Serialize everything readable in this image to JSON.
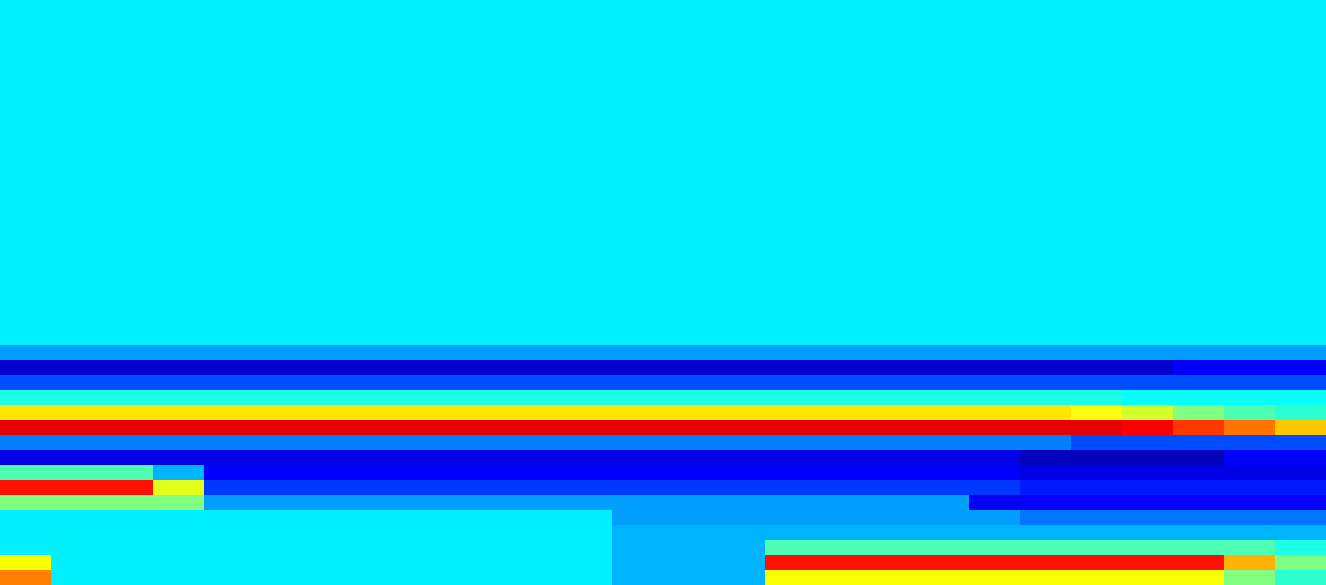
{
  "chart_data": {
    "type": "heatmap",
    "tick_labels": false,
    "vlim": [
      0,
      100
    ],
    "cells": [
      [
        36,
        36,
        36,
        36,
        36,
        36,
        36,
        36,
        36,
        36,
        36,
        36,
        36,
        36,
        36,
        36,
        36,
        36,
        36,
        36,
        36,
        36,
        36,
        36,
        36,
        36
      ],
      [
        36,
        36,
        36,
        36,
        36,
        36,
        36,
        36,
        36,
        36,
        36,
        36,
        36,
        36,
        36,
        36,
        36,
        36,
        36,
        36,
        36,
        36,
        36,
        36,
        36,
        36
      ],
      [
        36,
        36,
        36,
        36,
        36,
        36,
        36,
        36,
        36,
        36,
        36,
        36,
        36,
        36,
        36,
        36,
        36,
        36,
        36,
        36,
        36,
        36,
        36,
        36,
        36,
        36
      ],
      [
        36,
        36,
        36,
        36,
        36,
        36,
        36,
        36,
        36,
        36,
        36,
        36,
        36,
        36,
        36,
        36,
        36,
        36,
        36,
        36,
        36,
        36,
        36,
        36,
        36,
        36
      ],
      [
        36,
        36,
        36,
        36,
        36,
        36,
        36,
        36,
        36,
        36,
        36,
        36,
        36,
        36,
        36,
        36,
        36,
        36,
        36,
        36,
        36,
        36,
        36,
        36,
        36,
        36
      ],
      [
        36,
        36,
        36,
        36,
        36,
        36,
        36,
        36,
        36,
        36,
        36,
        36,
        36,
        36,
        36,
        36,
        36,
        36,
        36,
        36,
        36,
        36,
        36,
        36,
        36,
        36
      ],
      [
        36,
        36,
        36,
        36,
        36,
        36,
        36,
        36,
        36,
        36,
        36,
        36,
        36,
        36,
        36,
        36,
        36,
        36,
        36,
        36,
        36,
        36,
        36,
        36,
        36,
        36
      ],
      [
        36,
        36,
        36,
        36,
        36,
        36,
        36,
        36,
        36,
        36,
        36,
        36,
        36,
        36,
        36,
        36,
        36,
        36,
        36,
        36,
        36,
        36,
        36,
        36,
        36,
        36
      ],
      [
        36,
        36,
        36,
        36,
        36,
        36,
        36,
        36,
        36,
        36,
        36,
        36,
        36,
        36,
        36,
        36,
        36,
        36,
        36,
        36,
        36,
        36,
        36,
        36,
        36,
        36
      ],
      [
        36,
        36,
        36,
        36,
        36,
        36,
        36,
        36,
        36,
        36,
        36,
        36,
        36,
        36,
        36,
        36,
        36,
        36,
        36,
        36,
        36,
        36,
        36,
        36,
        36,
        36
      ],
      [
        36,
        36,
        36,
        36,
        36,
        36,
        36,
        36,
        36,
        36,
        36,
        36,
        36,
        36,
        36,
        36,
        36,
        36,
        36,
        36,
        36,
        36,
        36,
        36,
        36,
        36
      ],
      [
        36,
        36,
        36,
        36,
        36,
        36,
        36,
        36,
        36,
        36,
        36,
        36,
        36,
        36,
        36,
        36,
        36,
        36,
        36,
        36,
        36,
        36,
        36,
        36,
        36,
        36
      ],
      [
        36,
        36,
        36,
        36,
        36,
        36,
        36,
        36,
        36,
        36,
        36,
        36,
        36,
        36,
        36,
        36,
        36,
        36,
        36,
        36,
        36,
        36,
        36,
        36,
        36,
        36
      ],
      [
        36,
        36,
        36,
        36,
        36,
        36,
        36,
        36,
        36,
        36,
        36,
        36,
        36,
        36,
        36,
        36,
        36,
        36,
        36,
        36,
        36,
        36,
        36,
        36,
        36,
        36
      ],
      [
        36,
        36,
        36,
        36,
        36,
        36,
        36,
        36,
        36,
        36,
        36,
        36,
        36,
        36,
        36,
        36,
        36,
        36,
        36,
        36,
        36,
        36,
        36,
        36,
        36,
        36
      ],
      [
        36,
        36,
        36,
        36,
        36,
        36,
        36,
        36,
        36,
        36,
        36,
        36,
        36,
        36,
        36,
        36,
        36,
        36,
        36,
        36,
        36,
        36,
        36,
        36,
        36,
        36
      ],
      [
        36,
        36,
        36,
        36,
        36,
        36,
        36,
        36,
        36,
        36,
        36,
        36,
        36,
        36,
        36,
        36,
        36,
        36,
        36,
        36,
        36,
        36,
        36,
        36,
        36,
        36
      ],
      [
        36,
        36,
        36,
        36,
        36,
        36,
        36,
        36,
        36,
        36,
        36,
        36,
        36,
        36,
        36,
        36,
        36,
        36,
        36,
        36,
        36,
        36,
        36,
        36,
        36,
        36
      ],
      [
        36,
        36,
        36,
        36,
        36,
        36,
        36,
        36,
        36,
        36,
        36,
        36,
        36,
        36,
        36,
        36,
        36,
        36,
        36,
        36,
        36,
        36,
        36,
        36,
        36,
        36
      ],
      [
        36,
        36,
        36,
        36,
        36,
        36,
        36,
        36,
        36,
        36,
        36,
        36,
        36,
        36,
        36,
        36,
        36,
        36,
        36,
        36,
        36,
        36,
        36,
        36,
        36,
        36
      ],
      [
        36,
        36,
        36,
        36,
        36,
        36,
        36,
        36,
        36,
        36,
        36,
        36,
        36,
        36,
        36,
        36,
        36,
        36,
        36,
        36,
        36,
        36,
        36,
        36,
        36,
        36
      ],
      [
        36,
        36,
        36,
        36,
        36,
        36,
        36,
        36,
        36,
        36,
        36,
        36,
        36,
        36,
        36,
        36,
        36,
        36,
        36,
        36,
        36,
        36,
        36,
        36,
        36,
        36
      ],
      [
        36,
        36,
        36,
        36,
        36,
        36,
        36,
        36,
        36,
        36,
        36,
        36,
        36,
        36,
        36,
        36,
        36,
        36,
        36,
        36,
        36,
        36,
        36,
        36,
        36,
        36
      ],
      [
        28,
        28,
        28,
        28,
        28,
        28,
        28,
        28,
        28,
        28,
        28,
        28,
        28,
        28,
        28,
        28,
        28,
        28,
        28,
        28,
        28,
        28,
        28,
        28,
        28,
        28
      ],
      [
        8,
        8,
        8,
        8,
        8,
        8,
        8,
        8,
        8,
        8,
        8,
        8,
        8,
        8,
        8,
        8,
        8,
        8,
        8,
        8,
        8,
        8,
        8,
        12,
        12,
        12
      ],
      [
        20,
        20,
        20,
        20,
        20,
        20,
        20,
        20,
        20,
        20,
        20,
        20,
        20,
        20,
        20,
        20,
        20,
        20,
        20,
        20,
        20,
        20,
        20,
        20,
        20,
        20
      ],
      [
        40,
        40,
        40,
        40,
        40,
        40,
        40,
        40,
        40,
        40,
        40,
        40,
        40,
        40,
        40,
        40,
        40,
        40,
        40,
        40,
        40,
        40,
        38,
        38,
        38,
        38
      ],
      [
        65,
        65,
        65,
        65,
        65,
        65,
        65,
        65,
        65,
        65,
        65,
        65,
        65,
        65,
        65,
        65,
        65,
        65,
        65,
        65,
        65,
        62,
        58,
        50,
        45,
        42
      ],
      [
        90,
        90,
        90,
        90,
        90,
        90,
        90,
        90,
        90,
        90,
        90,
        90,
        90,
        90,
        90,
        90,
        90,
        90,
        90,
        90,
        90,
        90,
        88,
        82,
        76,
        68
      ],
      [
        25,
        25,
        25,
        25,
        25,
        25,
        25,
        25,
        25,
        25,
        25,
        25,
        25,
        25,
        25,
        25,
        25,
        25,
        25,
        25,
        25,
        20,
        20,
        20,
        20,
        20
      ],
      [
        10,
        10,
        10,
        10,
        10,
        10,
        10,
        10,
        10,
        10,
        10,
        10,
        10,
        10,
        10,
        10,
        10,
        10,
        10,
        10,
        6,
        6,
        6,
        6,
        12,
        12
      ],
      [
        45,
        45,
        45,
        30,
        12,
        12,
        12,
        12,
        12,
        12,
        12,
        12,
        12,
        12,
        12,
        12,
        12,
        12,
        12,
        12,
        10,
        10,
        10,
        10,
        10,
        10
      ],
      [
        86,
        86,
        86,
        60,
        18,
        18,
        18,
        18,
        18,
        18,
        18,
        18,
        18,
        18,
        18,
        18,
        18,
        18,
        18,
        18,
        15,
        15,
        15,
        15,
        15,
        15
      ],
      [
        50,
        50,
        50,
        50,
        28,
        28,
        28,
        28,
        28,
        28,
        28,
        28,
        28,
        28,
        28,
        28,
        28,
        28,
        28,
        12,
        12,
        12,
        12,
        12,
        12,
        12
      ],
      [
        36,
        36,
        36,
        36,
        36,
        36,
        36,
        36,
        36,
        36,
        36,
        36,
        28,
        28,
        28,
        28,
        28,
        28,
        28,
        28,
        24,
        24,
        24,
        24,
        24,
        24
      ],
      [
        36,
        36,
        36,
        36,
        36,
        36,
        36,
        36,
        36,
        36,
        36,
        36,
        30,
        30,
        30,
        30,
        30,
        30,
        30,
        30,
        30,
        30,
        30,
        30,
        30,
        30
      ],
      [
        36,
        36,
        36,
        36,
        36,
        36,
        36,
        36,
        36,
        36,
        36,
        36,
        30,
        30,
        30,
        45,
        45,
        45,
        45,
        45,
        45,
        45,
        45,
        45,
        45,
        40
      ],
      [
        62,
        36,
        36,
        36,
        36,
        36,
        36,
        36,
        36,
        36,
        36,
        36,
        30,
        30,
        30,
        86,
        86,
        86,
        86,
        86,
        86,
        86,
        86,
        86,
        70,
        50
      ],
      [
        75,
        36,
        36,
        36,
        36,
        36,
        36,
        36,
        36,
        36,
        36,
        36,
        30,
        30,
        30,
        62,
        62,
        62,
        62,
        62,
        62,
        62,
        62,
        62,
        50,
        42
      ]
    ]
  }
}
